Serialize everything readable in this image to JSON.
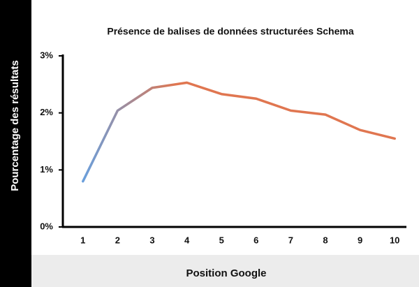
{
  "chart_data": {
    "type": "line",
    "title": "Présence de balises de données structurées Schema",
    "x_label": "Position Google",
    "y_label": "Pourcentage des résultats",
    "categories": [
      "1",
      "2",
      "3",
      "4",
      "5",
      "6",
      "7",
      "8",
      "9",
      "10"
    ],
    "values": [
      0.8,
      2.04,
      2.44,
      2.53,
      2.33,
      2.25,
      2.04,
      1.97,
      1.7,
      1.55
    ],
    "colors": [
      "#6a9fdc",
      "#e07650"
    ],
    "ylim": [
      0,
      3
    ],
    "yticks": [
      {
        "value": 0,
        "label": "0%"
      },
      {
        "value": 1,
        "label": "1%"
      },
      {
        "value": 2,
        "label": "2%"
      },
      {
        "value": 3,
        "label": "3%"
      }
    ],
    "grid": false
  }
}
